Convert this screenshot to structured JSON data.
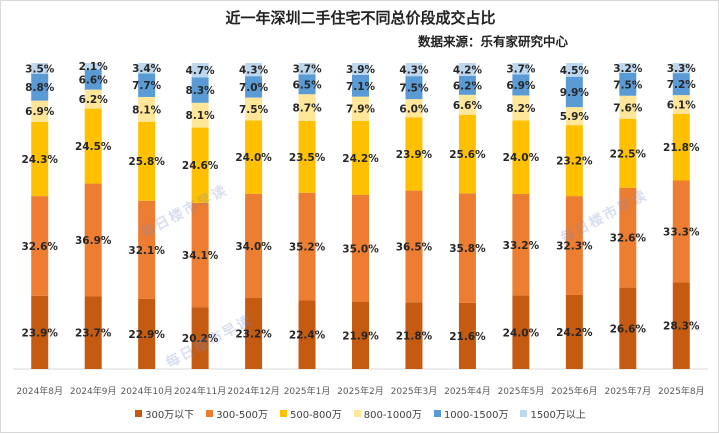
{
  "chart_data": {
    "type": "bar",
    "stacked": true,
    "title": "近一年深圳二手住宅不同总价段成交占比",
    "subtitle": "数据来源：乐有家研究中心",
    "categories": [
      "2024年8月",
      "2024年9月",
      "2024年10月",
      "2024年11月",
      "2024年12月",
      "2025年1月",
      "2025年2月",
      "2025年3月",
      "2025年4月",
      "2025年5月",
      "2025年6月",
      "2025年7月",
      "2025年8月"
    ],
    "series": [
      {
        "name": "300万以下",
        "color": "#c55a11",
        "values": [
          23.9,
          23.7,
          22.9,
          20.2,
          23.2,
          22.4,
          21.9,
          21.8,
          21.6,
          24.0,
          24.2,
          26.6,
          28.3
        ],
        "labels": [
          "23.9%",
          "23.7%",
          "22.9%",
          "20.2%",
          "23.2%",
          "22.4%",
          "21.9%",
          "21.8%",
          "21.6%",
          "24.0%",
          "24.2%",
          "26.6%",
          "28.3%"
        ]
      },
      {
        "name": "300-500万",
        "color": "#ed7d31",
        "values": [
          32.6,
          36.9,
          32.1,
          34.1,
          34.0,
          35.2,
          35.0,
          36.5,
          35.8,
          33.2,
          32.3,
          32.6,
          33.3
        ],
        "labels": [
          "32.6%",
          "36.9%",
          "32.1%",
          "34.1%",
          "34.0%",
          "35.2%",
          "35.0%",
          "36.5%",
          "35.8%",
          "33.2%",
          "32.3%",
          "32.6%",
          "33.3%"
        ]
      },
      {
        "name": "500-800万",
        "color": "#ffc000",
        "values": [
          24.3,
          24.5,
          25.8,
          24.6,
          24.0,
          23.5,
          24.2,
          23.9,
          25.6,
          24.0,
          23.2,
          22.5,
          21.8
        ],
        "labels": [
          "24.3%",
          "24.5%",
          "25.8%",
          "24.6%",
          "24.0%",
          "23.5%",
          "24.2%",
          "23.9%",
          "25.6%",
          "24.0%",
          "23.2%",
          "22.5%",
          "21.8%"
        ]
      },
      {
        "name": "800-1000万",
        "color": "#ffe699",
        "values": [
          6.9,
          6.2,
          8.1,
          8.1,
          7.5,
          8.7,
          7.9,
          6.0,
          6.6,
          8.2,
          5.9,
          7.6,
          6.1
        ],
        "labels": [
          "6.9%",
          "6.2%",
          "8.1%",
          "8.1%",
          "7.5%",
          "8.7%",
          "7.9%",
          "6.0%",
          "6.6%",
          "8.2%",
          "5.9%",
          "7.6%",
          "6.1%"
        ]
      },
      {
        "name": "1000-1500万",
        "color": "#5b9bd5",
        "values": [
          8.8,
          6.6,
          7.7,
          8.3,
          7.0,
          6.5,
          7.1,
          7.5,
          6.2,
          6.9,
          9.9,
          7.5,
          7.2
        ],
        "labels": [
          "8.8%",
          "6.6%",
          "7.7%",
          "8.3%",
          "7.0%",
          "6.5%",
          "7.1%",
          "7.5%",
          "6.2%",
          "6.9%",
          "9.9%",
          "7.5%",
          "7.2%"
        ]
      },
      {
        "name": "1500万以上",
        "color": "#bdd7ee",
        "values": [
          3.5,
          2.1,
          3.4,
          4.7,
          4.3,
          3.7,
          3.9,
          4.3,
          4.2,
          3.7,
          4.5,
          3.2,
          3.3
        ],
        "labels": [
          "3.5%",
          "2.1%",
          "3.4%",
          "4.7%",
          "4.3%",
          "3.7%",
          "3.9%",
          "4.3%",
          "4.2%",
          "3.7%",
          "4.5%",
          "3.2%",
          "3.3%"
        ]
      }
    ],
    "ylim": [
      0,
      100
    ],
    "grid": false,
    "legend": "bottom"
  },
  "watermark": {
    "text": "每日楼市早读",
    "badge": "乐有家"
  }
}
